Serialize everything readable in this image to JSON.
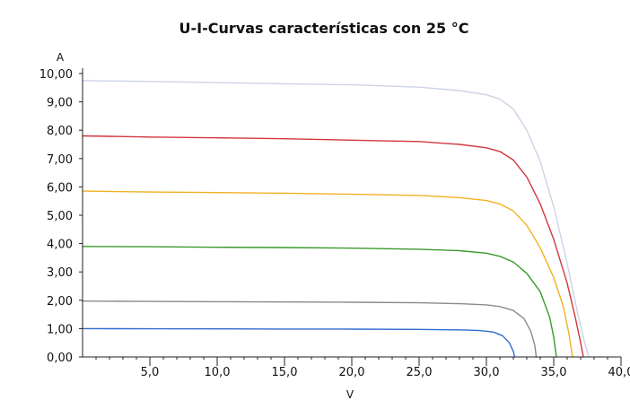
{
  "chart_data": {
    "type": "line",
    "title": "U-I-Curvas características con 25 °C",
    "xlabel": "V",
    "ylabel": "A",
    "xlim": [
      0,
      40
    ],
    "ylim": [
      0,
      10
    ],
    "x_ticks": [
      "5,0",
      "10,0",
      "15,0",
      "20,0",
      "25,0",
      "30,0",
      "35,0",
      "40,0"
    ],
    "y_ticks": [
      "0,00",
      "1,00",
      "2,00",
      "3,00",
      "4,00",
      "5,00",
      "6,00",
      "7,00",
      "8,00",
      "9,00",
      "10,00"
    ],
    "grid": false,
    "series": [
      {
        "color": "#ccd3e6",
        "points": [
          [
            0,
            9.75
          ],
          [
            5,
            9.72
          ],
          [
            10,
            9.68
          ],
          [
            15,
            9.64
          ],
          [
            20,
            9.6
          ],
          [
            25,
            9.52
          ],
          [
            28,
            9.4
          ],
          [
            30,
            9.25
          ],
          [
            31,
            9.1
          ],
          [
            32,
            8.75
          ],
          [
            33,
            8.0
          ],
          [
            34,
            6.9
          ],
          [
            35,
            5.3
          ],
          [
            36,
            3.3
          ],
          [
            36.8,
            1.5
          ],
          [
            37.3,
            0.5
          ],
          [
            37.6,
            0
          ]
        ]
      },
      {
        "color": "#d2363d",
        "points": [
          [
            0,
            7.8
          ],
          [
            5,
            7.76
          ],
          [
            10,
            7.73
          ],
          [
            15,
            7.7
          ],
          [
            20,
            7.65
          ],
          [
            25,
            7.6
          ],
          [
            28,
            7.5
          ],
          [
            30,
            7.38
          ],
          [
            31,
            7.25
          ],
          [
            32,
            6.95
          ],
          [
            33,
            6.35
          ],
          [
            34,
            5.4
          ],
          [
            35,
            4.15
          ],
          [
            36,
            2.6
          ],
          [
            36.6,
            1.4
          ],
          [
            37.0,
            0.5
          ],
          [
            37.2,
            0
          ]
        ]
      },
      {
        "color": "#f2b020",
        "points": [
          [
            0,
            5.85
          ],
          [
            5,
            5.82
          ],
          [
            10,
            5.8
          ],
          [
            15,
            5.78
          ],
          [
            20,
            5.74
          ],
          [
            25,
            5.7
          ],
          [
            28,
            5.62
          ],
          [
            30,
            5.52
          ],
          [
            31,
            5.4
          ],
          [
            32,
            5.15
          ],
          [
            33,
            4.65
          ],
          [
            34,
            3.85
          ],
          [
            35,
            2.8
          ],
          [
            35.7,
            1.8
          ],
          [
            36.1,
            0.9
          ],
          [
            36.4,
            0
          ]
        ]
      },
      {
        "color": "#3a9a2c",
        "points": [
          [
            0,
            3.9
          ],
          [
            5,
            3.89
          ],
          [
            10,
            3.87
          ],
          [
            15,
            3.86
          ],
          [
            20,
            3.84
          ],
          [
            25,
            3.8
          ],
          [
            28,
            3.75
          ],
          [
            30,
            3.66
          ],
          [
            31,
            3.55
          ],
          [
            32,
            3.35
          ],
          [
            33,
            2.95
          ],
          [
            34,
            2.3
          ],
          [
            34.7,
            1.4
          ],
          [
            35.0,
            0.7
          ],
          [
            35.2,
            0
          ]
        ]
      },
      {
        "color": "#8a8a8a",
        "points": [
          [
            0,
            1.97
          ],
          [
            5,
            1.96
          ],
          [
            10,
            1.95
          ],
          [
            15,
            1.94
          ],
          [
            20,
            1.93
          ],
          [
            25,
            1.91
          ],
          [
            28,
            1.88
          ],
          [
            30,
            1.84
          ],
          [
            31,
            1.78
          ],
          [
            32,
            1.64
          ],
          [
            32.8,
            1.35
          ],
          [
            33.3,
            0.9
          ],
          [
            33.6,
            0.4
          ],
          [
            33.7,
            0
          ]
        ]
      },
      {
        "color": "#2f6bd0",
        "points": [
          [
            0,
            1.0
          ],
          [
            5,
            0.995
          ],
          [
            10,
            0.99
          ],
          [
            15,
            0.985
          ],
          [
            20,
            0.98
          ],
          [
            25,
            0.97
          ],
          [
            28,
            0.955
          ],
          [
            29.5,
            0.93
          ],
          [
            30.5,
            0.88
          ],
          [
            31.2,
            0.75
          ],
          [
            31.7,
            0.5
          ],
          [
            32.0,
            0.2
          ],
          [
            32.1,
            0
          ]
        ]
      }
    ]
  }
}
